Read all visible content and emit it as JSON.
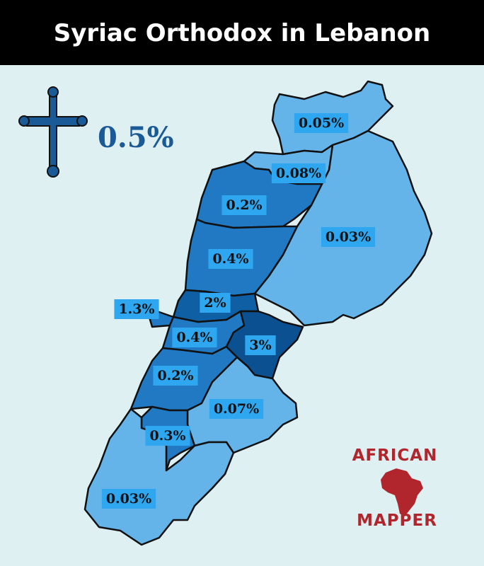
{
  "header": {
    "title": "Syriac Orthodox in Lebanon"
  },
  "summary": {
    "value": "0.5%"
  },
  "regions": [
    {
      "label": "0.05%",
      "color": "#64b4ea"
    },
    {
      "label": "0.03%",
      "color": "#64b4ea"
    },
    {
      "label": "0.08%",
      "color": "#64b4ea"
    },
    {
      "label": "0.2%",
      "color": "#2079c2"
    },
    {
      "label": "0.4%",
      "color": "#2079c2"
    },
    {
      "label": "2%",
      "color": "#0e5fa3"
    },
    {
      "label": "1.3%",
      "color": "#2079c2"
    },
    {
      "label": "0.4%",
      "color": "#2079c2"
    },
    {
      "label": "3%",
      "color": "#0b5090"
    },
    {
      "label": "0.2%",
      "color": "#2079c2"
    },
    {
      "label": "0.07%",
      "color": "#64b4ea"
    },
    {
      "label": "0.3%",
      "color": "#2079c2"
    },
    {
      "label": "0.03%",
      "color": "#64b4ea"
    }
  ],
  "logo": {
    "top": "AFRICAN",
    "bottom": "MAPPER"
  }
}
